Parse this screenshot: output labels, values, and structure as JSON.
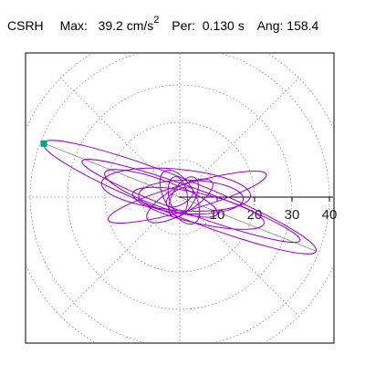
{
  "header": {
    "component": "CSRH",
    "max_label": "Max:",
    "max_value": "39.2",
    "max_unit": "cm/s",
    "max_unit_exp": "2",
    "per_label": "Per:",
    "per_value": "0.130 s",
    "ang_label": "Ang:",
    "ang_value": "158.4"
  },
  "colors": {
    "trace": "#9900cc",
    "marker": "#00a37a",
    "grid": "#888888",
    "axis": "#000000"
  },
  "chart_data": {
    "type": "polar-orbit",
    "radial_ticks": [
      10,
      20,
      30,
      40
    ],
    "radial_max": 45,
    "grid": true,
    "max_radius": 39.2,
    "max_angle_deg": 158.4,
    "orbit_ellipses": [
      {
        "a": 39.2,
        "b": 5,
        "angle": 158.4,
        "cx": 0,
        "cy": 0
      },
      {
        "a": 31,
        "b": 3.5,
        "angle": 160,
        "cx": 3,
        "cy": -1
      },
      {
        "a": 20,
        "b": 5.5,
        "angle": 175,
        "cx": -1,
        "cy": 2
      },
      {
        "a": 18,
        "b": 4,
        "angle": 167,
        "cx": 5,
        "cy": -3
      },
      {
        "a": 22,
        "b": 3.5,
        "angle": 196,
        "cx": 2,
        "cy": 0
      },
      {
        "a": 14,
        "b": 4.5,
        "angle": 178,
        "cx": 3,
        "cy": 0
      },
      {
        "a": 16,
        "b": 3.5,
        "angle": 160,
        "cx": -5,
        "cy": 1
      },
      {
        "a": 10,
        "b": 3.5,
        "angle": 210,
        "cx": 0,
        "cy": -1
      },
      {
        "a": 8,
        "b": 4,
        "angle": 120,
        "cx": 0,
        "cy": 0
      },
      {
        "a": 6,
        "b": 3,
        "angle": 60,
        "cx": 1,
        "cy": 0
      },
      {
        "a": 5,
        "b": 2.5,
        "angle": 100,
        "cx": -0.5,
        "cy": 0.5
      },
      {
        "a": 4,
        "b": 2,
        "angle": 30,
        "cx": 0,
        "cy": 0
      }
    ]
  }
}
